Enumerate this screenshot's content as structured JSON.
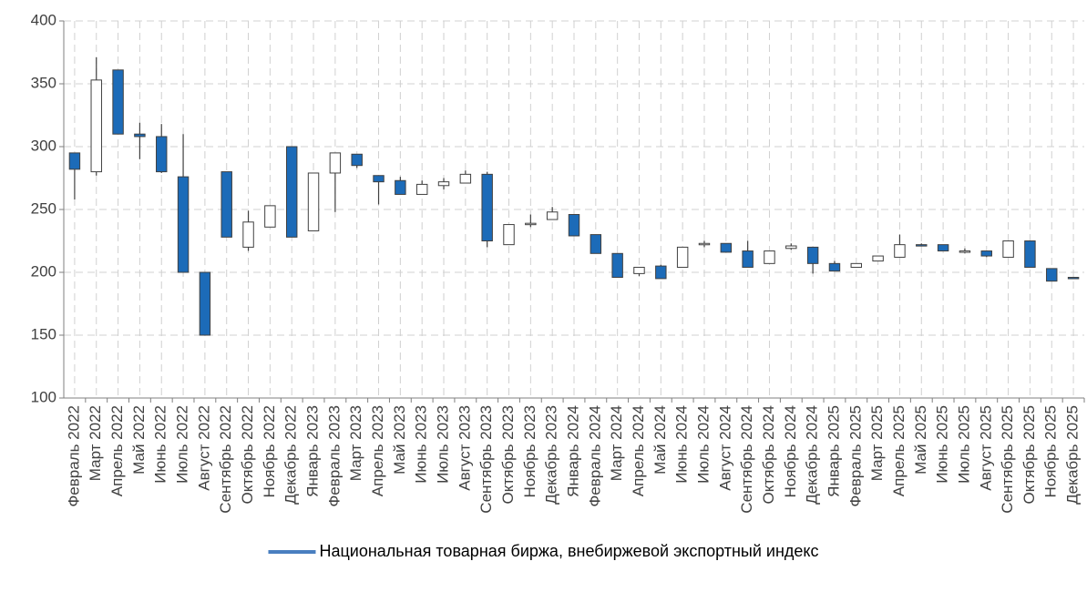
{
  "chart_data": {
    "type": "candlestick",
    "categories": [
      "Февраль 2022",
      "Март 2022",
      "Апрель 2022",
      "Май 2022",
      "Июнь 2022",
      "Июль 2022",
      "Август 2022",
      "Сентябрь 2022",
      "Октябрь 2022",
      "Ноябрь 2022",
      "Декабрь 2022",
      "Январь 2023",
      "Февраль 2023",
      "Март 2023",
      "Апрель 2023",
      "Май 2023",
      "Июнь 2023",
      "Июль 2023",
      "Август 2023",
      "Сентябрь 2023",
      "Октябрь 2023",
      "Ноябрь 2023",
      "Декабрь 2023",
      "Январь 2024",
      "Февраль 2024",
      "Март 2024",
      "Апрель 2024",
      "Май 2024",
      "Июнь 2024",
      "Июль 2024",
      "Август 2024",
      "Сентябрь 2024",
      "Октябрь 2024",
      "Ноябрь 2024",
      "Декабрь 2024",
      "Январь 2025",
      "Февраль 2025",
      "Март 2025",
      "Апрель 2025",
      "Май 2025",
      "Июнь 2025",
      "Июль 2025",
      "Август 2025",
      "Сентябрь 2025",
      "Октябрь 2025",
      "Ноябрь 2025",
      "Декабрь 2025"
    ],
    "series": [
      {
        "name": "Национальная товарная биржа, внебиржевой экспортный индекс",
        "color": "#4a7fc0",
        "up_color": "#ffffff",
        "down_color": "#1c6bb8",
        "open": [
          295,
          280,
          361,
          310,
          308,
          276,
          200,
          280,
          220,
          236,
          300,
          233,
          279,
          294,
          277,
          273,
          262,
          269,
          271,
          278,
          222,
          238,
          242,
          246,
          230,
          215,
          199,
          205,
          204,
          222,
          223,
          217,
          207,
          219,
          220,
          207,
          204,
          209,
          212,
          222,
          222,
          216,
          217,
          212,
          225,
          203,
          196
        ],
        "high": [
          295,
          371,
          361,
          319,
          318,
          310,
          200,
          280,
          249,
          253,
          300,
          279,
          295,
          294,
          277,
          276,
          273,
          275,
          281,
          280,
          238,
          246,
          252,
          246,
          230,
          215,
          204,
          206,
          220,
          225,
          223,
          225,
          217,
          223,
          220,
          209,
          207,
          213,
          230,
          223,
          222,
          219,
          217,
          225,
          225,
          203,
          196
        ],
        "low": [
          258,
          277,
          310,
          290,
          279,
          200,
          150,
          228,
          217,
          236,
          228,
          233,
          248,
          283,
          254,
          262,
          262,
          266,
          271,
          220,
          222,
          236,
          242,
          229,
          215,
          196,
          197,
          195,
          204,
          220,
          216,
          204,
          207,
          218,
          199,
          201,
          204,
          209,
          212,
          221,
          217,
          215,
          212,
          212,
          204,
          193,
          195
        ],
        "close": [
          282,
          353,
          310,
          308,
          280,
          200,
          150,
          228,
          240,
          253,
          228,
          279,
          295,
          285,
          272,
          262,
          270,
          272,
          278,
          225,
          238,
          239,
          248,
          229,
          215,
          196,
          204,
          195,
          220,
          223,
          216,
          204,
          217,
          221,
          207,
          201,
          207,
          213,
          222,
          221,
          217,
          217,
          213,
          225,
          204,
          193,
          195
        ]
      }
    ],
    "ylim": [
      100,
      400
    ],
    "yticks": [
      100,
      150,
      200,
      250,
      300,
      350,
      400
    ],
    "grid": true,
    "legend": "bottom"
  }
}
